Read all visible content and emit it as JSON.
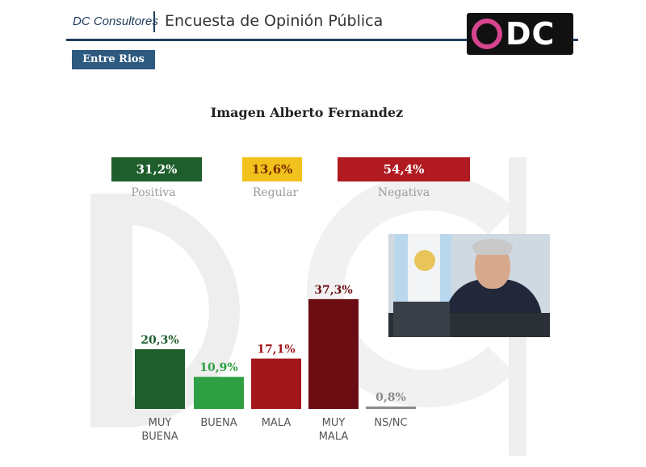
{
  "header": {
    "brand": "DC Consultores",
    "survey_title": "Encuesta de Opinión Pública",
    "logo_text": "DC"
  },
  "region_badge": "Entre Rios",
  "summary": [
    {
      "value": "31,2%",
      "label": "Positiva",
      "color": "#1e5e2c"
    },
    {
      "value": "13,6%",
      "label": "Regular",
      "color": "#f1c21b"
    },
    {
      "value": "54,4%",
      "label": "Negativa",
      "color": "#b11a21"
    }
  ],
  "colors": {
    "muy_buena": "#1e5e2c",
    "buena": "#2ea043",
    "mala": "#a3161c",
    "muy_mala": "#6b0d12",
    "nsnc": "#8c8c8c"
  },
  "chart_data": {
    "type": "bar",
    "title": "Imagen Alberto Fernandez",
    "categories": [
      [
        "MUY",
        "BUENA"
      ],
      [
        "BUENA"
      ],
      [
        "MALA"
      ],
      [
        "MUY",
        "MALA"
      ],
      [
        "NS/NC"
      ]
    ],
    "values": [
      20.3,
      10.9,
      17.1,
      37.3,
      0.8
    ],
    "value_labels": [
      "20,3%",
      "10,9%",
      "17,1%",
      "37,3%",
      "0,8%"
    ],
    "label_colors": [
      "#1e5e2c",
      "#2ea043",
      "#a3161c",
      "#6b0d12",
      "#8c8c8c"
    ],
    "bar_colors": [
      "#1e5e2c",
      "#2ea043",
      "#a3161c",
      "#6b0d12",
      "#8c8c8c"
    ],
    "ylim": [
      0,
      40
    ],
    "grid": false,
    "legend": "none"
  }
}
